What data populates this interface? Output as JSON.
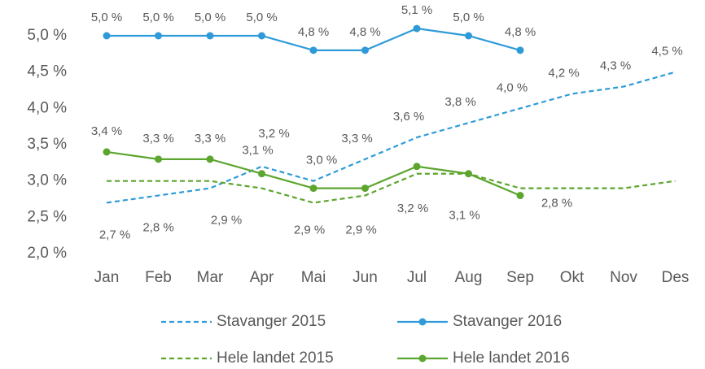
{
  "chart_data": {
    "type": "line",
    "categories": [
      "Jan",
      "Feb",
      "Mar",
      "Apr",
      "Mai",
      "Jun",
      "Jul",
      "Aug",
      "Sep",
      "Okt",
      "Nov",
      "Des"
    ],
    "ylim": [
      2.0,
      5.0
    ],
    "yticks": [
      {
        "value": 2.0,
        "label": "2,0 %"
      },
      {
        "value": 2.5,
        "label": "2,5 %"
      },
      {
        "value": 3.0,
        "label": "3,0 %"
      },
      {
        "value": 3.5,
        "label": "3,5 %"
      },
      {
        "value": 4.0,
        "label": "4,0 %"
      },
      {
        "value": 4.5,
        "label": "4,5 %"
      },
      {
        "value": 5.0,
        "label": "5,0 %"
      }
    ],
    "series": [
      {
        "name": "Stavanger 2015",
        "color": "#2e9bd8",
        "dashed": true,
        "values": [
          2.7,
          2.8,
          2.9,
          3.2,
          3.0,
          3.3,
          3.6,
          3.8,
          4.0,
          4.2,
          4.3,
          4.5
        ],
        "value_labels": [
          "2,7 %",
          "2,8 %",
          "2,9 %",
          "3,2 %",
          "3,0 %",
          "3,3 %",
          "3,6 %",
          "3,8 %",
          "4,0 %",
          "4,2 %",
          "4,3 %",
          "4,5 %"
        ]
      },
      {
        "name": "Stavanger 2016",
        "color": "#2e9bd8",
        "dashed": false,
        "values": [
          5.0,
          5.0,
          5.0,
          5.0,
          4.8,
          4.8,
          5.1,
          5.0,
          4.8,
          null,
          null,
          null
        ],
        "value_labels": [
          "5,0 %",
          "5,0 %",
          "5,0 %",
          "5,0 %",
          "4,8 %",
          "4,8 %",
          "5,1 %",
          "5,0 %",
          "4,8 %",
          null,
          null,
          null
        ]
      },
      {
        "name": "Hele landet 2015",
        "color": "#5ca52e",
        "dashed": true,
        "values": [
          3.0,
          3.0,
          3.0,
          2.9,
          2.7,
          2.8,
          3.1,
          3.1,
          2.9,
          2.9,
          2.9,
          3.0
        ]
      },
      {
        "name": "Hele landet 2016",
        "color": "#5ca52e",
        "dashed": false,
        "values": [
          3.4,
          3.3,
          3.3,
          3.1,
          2.9,
          2.9,
          3.2,
          3.1,
          2.8,
          null,
          null,
          null
        ],
        "value_labels": [
          "3,4 %",
          "3,3 %",
          "3,3 %",
          "3,1 %",
          "2,9 %",
          "2,9 %",
          "3,2 %",
          "3,1 %",
          "2,8 %",
          null,
          null,
          null
        ]
      }
    ]
  }
}
